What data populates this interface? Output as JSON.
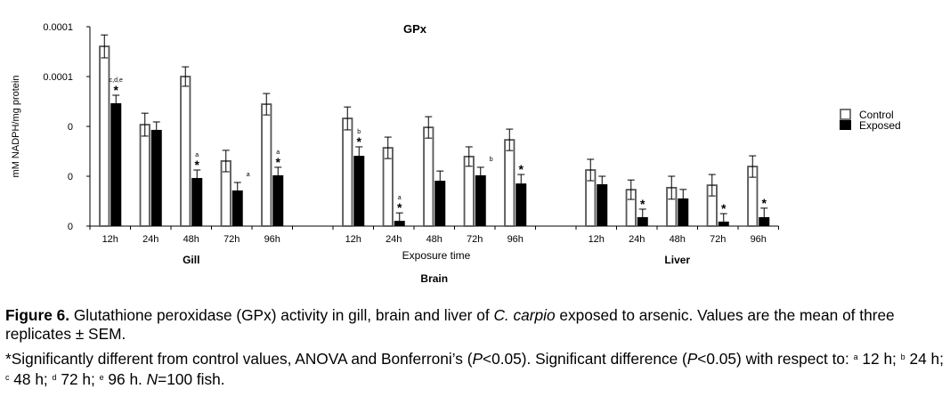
{
  "chart_data": {
    "type": "bar",
    "title": "GPx",
    "ylabel": "mM NADPH/mg protein",
    "xlabel": "Exposure time",
    "ylim": [
      0,
      8e-05
    ],
    "y_ticks": [
      0,
      2e-05,
      4e-05,
      6e-05,
      8e-05
    ],
    "y_tick_labels": [
      "0",
      "0",
      "0",
      "0.0001",
      "0.0001"
    ],
    "grid": false,
    "legend_placement": "right",
    "colors": {
      "Control": "#ffffff",
      "Control_border": "#555555",
      "Exposed": "#000000"
    },
    "groups": [
      {
        "name": "Gill",
        "categories": [
          "12h",
          "24h",
          "48h",
          "72h",
          "96h"
        ],
        "series": [
          {
            "name": "Control",
            "values": [
              7.21e-05,
              4.07e-05,
              6e-05,
              2.61e-05,
              4.89e-05
            ],
            "errors": [
              4.6e-06,
              4.6e-06,
              3.9e-06,
              4.3e-06,
              4.3e-06
            ]
          },
          {
            "name": "Exposed",
            "values": [
              4.93e-05,
              3.86e-05,
              1.93e-05,
              1.43e-05,
              2.04e-05
            ],
            "errors": [
              3.2e-06,
              3.2e-06,
              3.2e-06,
              3.2e-06,
              3.2e-06
            ]
          }
        ],
        "annotations": [
          {
            "star": true,
            "letters": "c,d,e"
          },
          {
            "star": false,
            "letters": ""
          },
          {
            "star": true,
            "letters": "a"
          },
          {
            "star": false,
            "letters": "a"
          },
          {
            "star": true,
            "letters": "a"
          }
        ]
      },
      {
        "name": "Brain",
        "categories": [
          "12h",
          "24h",
          "48h",
          "72h",
          "96h"
        ],
        "series": [
          {
            "name": "Control",
            "values": [
              4.32e-05,
              3.14e-05,
              3.96e-05,
              2.79e-05,
              3.46e-05
            ],
            "errors": [
              4.6e-06,
              4.3e-06,
              4.3e-06,
              3.9e-06,
              4.3e-06
            ]
          },
          {
            "name": "Exposed",
            "values": [
              2.82e-05,
              2.1e-06,
              1.82e-05,
              2.04e-05,
              1.71e-05
            ],
            "errors": [
              3.6e-06,
              3.2e-06,
              3.9e-06,
              3.2e-06,
              3.6e-06
            ]
          }
        ],
        "annotations": [
          {
            "star": true,
            "letters": "b"
          },
          {
            "star": true,
            "letters": "a"
          },
          {
            "star": false,
            "letters": ""
          },
          {
            "star": false,
            "letters": "b"
          },
          {
            "star": true,
            "letters": ""
          }
        ]
      },
      {
        "name": "Liver",
        "categories": [
          "12h",
          "24h",
          "48h",
          "72h",
          "96h"
        ],
        "series": [
          {
            "name": "Control",
            "values": [
              2.25e-05,
              1.46e-05,
              1.54e-05,
              1.64e-05,
              2.39e-05
            ],
            "errors": [
              4.3e-06,
              3.9e-06,
              4.6e-06,
              4.3e-06,
              4.3e-06
            ]
          },
          {
            "name": "Exposed",
            "values": [
              1.68e-05,
              3.6e-06,
              1.11e-05,
              1.8e-06,
              3.6e-06
            ],
            "errors": [
              3.2e-06,
              3.2e-06,
              3.6e-06,
              3.2e-06,
              3.6e-06
            ]
          }
        ],
        "annotations": [
          {
            "star": false,
            "letters": ""
          },
          {
            "star": true,
            "letters": ""
          },
          {
            "star": false,
            "letters": ""
          },
          {
            "star": true,
            "letters": ""
          },
          {
            "star": true,
            "letters": ""
          }
        ]
      }
    ],
    "legend": [
      "Control",
      "Exposed"
    ]
  },
  "caption": {
    "label": "Figure 6.",
    "line1_a": " Glutathione peroxidase (GPx) activity in gill, brain and liver of ",
    "species": "C. carpio",
    "line1_b": " exposed to arsenic. Values are the mean of three replicates ± SEM.",
    "note_a": "*Significantly different from control values, ANOVA and Bonferroni’s (",
    "p1": "P",
    "note_b": "<0.05). Significant difference (",
    "p2": "P",
    "note_c": "<0.05) with respect to: ",
    "sup_a": "a",
    "t_a": " 12 h; ",
    "sup_b": "b",
    "t_b": " 24 h; ",
    "sup_c": "c",
    "t_c": " 48 h; ",
    "sup_d": "d",
    "t_d": " 72 h; ",
    "sup_e": "e",
    "t_e": " 96 h. ",
    "n_label": "N",
    "n_rest": "=100 fish."
  }
}
